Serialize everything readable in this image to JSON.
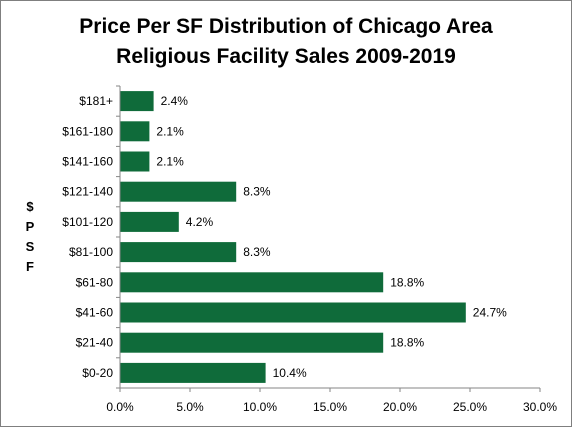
{
  "chart_data": {
    "type": "bar",
    "orientation": "horizontal",
    "title_lines": [
      "Price Per SF Distribution of Chicago Area",
      "Religious Facility Sales 2009-2019"
    ],
    "ylabel_letters": [
      "$",
      "P",
      "S",
      "F"
    ],
    "xlabel": "",
    "categories": [
      "$181+",
      "$161-180",
      "$141-160",
      "$121-140",
      "$101-120",
      "$81-100",
      "$61-80",
      "$41-60",
      "$21-40",
      "$0-20"
    ],
    "values": [
      2.4,
      2.1,
      2.1,
      8.3,
      4.2,
      8.3,
      18.8,
      24.7,
      18.8,
      10.4
    ],
    "data_labels": [
      "2.4%",
      "2.1%",
      "2.1%",
      "8.3%",
      "4.2%",
      "8.3%",
      "18.8%",
      "24.7%",
      "18.8%",
      "10.4%"
    ],
    "xlim": [
      0,
      30
    ],
    "x_ticks": [
      0,
      5,
      10,
      15,
      20,
      25,
      30
    ],
    "x_tick_labels": [
      "0.0%",
      "5.0%",
      "10.0%",
      "15.0%",
      "20.0%",
      "25.0%",
      "30.0%"
    ],
    "grid": false,
    "legend": "none",
    "bar_color": "#0f6b3a"
  }
}
